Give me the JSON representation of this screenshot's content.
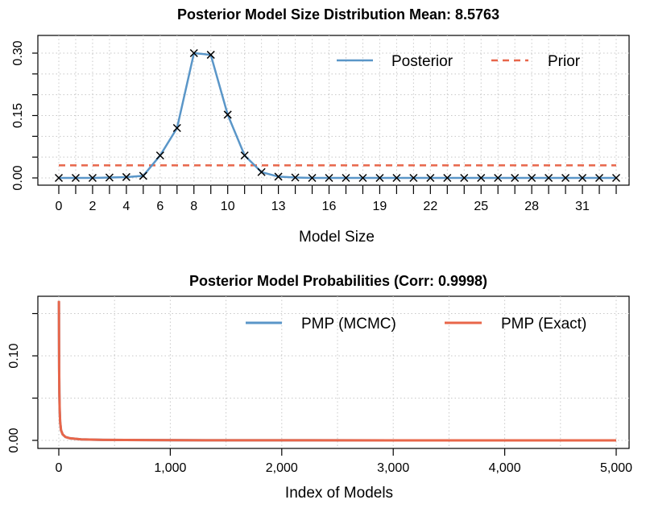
{
  "chart_data": [
    {
      "type": "line",
      "title": "Posterior Model Size Distribution Mean: 8.5763",
      "xlabel": "Model Size",
      "ylabel": "",
      "xlim": [
        0,
        33
      ],
      "ylim": [
        0,
        0.3
      ],
      "x_tick_labels": [
        "0",
        "2",
        "4",
        "6",
        "8",
        "10",
        "13",
        "16",
        "19",
        "22",
        "25",
        "28",
        "31"
      ],
      "x_tick_positions": [
        0,
        2,
        4,
        6,
        8,
        10,
        13,
        16,
        19,
        22,
        25,
        28,
        31
      ],
      "y_ticks": [
        0,
        0.15,
        0.3
      ],
      "y_tick_labels": [
        "0.00",
        "0.15",
        "0.30"
      ],
      "grid": true,
      "legend_position": "top-right",
      "series": [
        {
          "name": "Posterior",
          "color": "#5a96c8",
          "style": "solid",
          "markers": "x",
          "x": [
            0,
            1,
            2,
            3,
            4,
            5,
            6,
            7,
            8,
            9,
            10,
            11,
            12,
            13,
            14,
            15,
            16,
            17,
            18,
            19,
            20,
            21,
            22,
            23,
            24,
            25,
            26,
            27,
            28,
            29,
            30,
            31,
            32,
            33
          ],
          "values": [
            0.0,
            0.0,
            0.0,
            0.001,
            0.002,
            0.005,
            0.054,
            0.12,
            0.3,
            0.296,
            0.152,
            0.054,
            0.014,
            0.003,
            0.001,
            0,
            0,
            0,
            0,
            0,
            0,
            0,
            0,
            0,
            0,
            0,
            0,
            0,
            0,
            0,
            0,
            0,
            0,
            0
          ]
        },
        {
          "name": "Prior",
          "color": "#e8664a",
          "style": "dashed",
          "x": [
            0,
            33
          ],
          "values": [
            0.0303,
            0.0303
          ]
        }
      ]
    },
    {
      "type": "line",
      "title": "Posterior Model Probabilities (Corr: 0.9998)",
      "xlabel": "Index of Models",
      "ylabel": "",
      "xlim": [
        0,
        5000
      ],
      "ylim": [
        0,
        0.165
      ],
      "x_ticks": [
        0,
        1000,
        2000,
        3000,
        4000,
        5000
      ],
      "x_tick_labels": [
        "0",
        "1,000",
        "2,000",
        "3,000",
        "4,000",
        "5,000"
      ],
      "y_ticks": [
        0,
        0.05,
        0.1,
        0.15
      ],
      "y_tick_labels": [
        "0.00",
        "",
        "0.10",
        ""
      ],
      "grid": true,
      "legend_position": "top-right",
      "series": [
        {
          "name": "PMP (MCMC)",
          "color": "#5a96c8",
          "style": "solid",
          "x": [
            1,
            2,
            3,
            5,
            8,
            12,
            20,
            35,
            60,
            100,
            200,
            400,
            800,
            1500,
            3000,
            5000
          ],
          "values": [
            0.164,
            0.12,
            0.085,
            0.055,
            0.035,
            0.022,
            0.012,
            0.007,
            0.004,
            0.0025,
            0.0012,
            0.0006,
            0.0003,
            0.0001,
            3e-05,
            1e-05
          ]
        },
        {
          "name": "PMP (Exact)",
          "color": "#e8664a",
          "style": "solid",
          "x": [
            1,
            2,
            3,
            5,
            8,
            12,
            20,
            35,
            60,
            100,
            200,
            400,
            800,
            1500,
            3000,
            5000
          ],
          "values": [
            0.165,
            0.121,
            0.086,
            0.056,
            0.036,
            0.022,
            0.012,
            0.007,
            0.004,
            0.0025,
            0.0012,
            0.0006,
            0.0003,
            0.0001,
            3e-05,
            1e-05
          ]
        }
      ]
    }
  ]
}
